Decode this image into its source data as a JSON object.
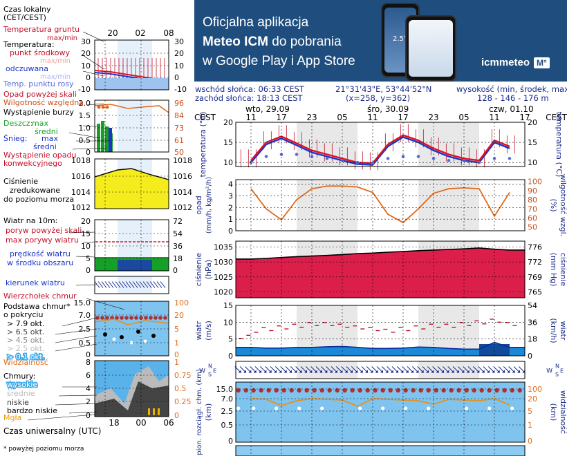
{
  "ad": {
    "line1": "Oficjalna aplikacja",
    "line2_bold": "Meteo ICM",
    "line2_rest": " do pobrania",
    "line3": "w Google Play i App Store",
    "logo": "icmmeteo",
    "logo_badge": "M°",
    "phone_temp": "2.5°"
  },
  "info": {
    "sunrise": "wschód słońca: 06:33 CEST",
    "sunset": "zachód słońca: 18:13 CEST",
    "coords": "21°31'43\"E, 53°44'52\"N",
    "grid": "(x=258, y=362)",
    "elev_label": "wysokość (min, środek, max)",
    "elev_values": "128 - 146 - 176 m"
  },
  "legend": {
    "local_time": [
      "Czas lokalny",
      "(CET/CEST)"
    ],
    "local_ticks": [
      "20",
      "02",
      "08"
    ],
    "soil_temp": [
      "Temperatura gruntu",
      "max/min"
    ],
    "temperature": "Temperatura:",
    "midpoint": "punkt środkowy",
    "max_min": "max/min",
    "feels_like": "odczuwana",
    "feels_max_min": "max/min",
    "dew_point": "Temp. punktu rosy",
    "precip_above": "Opad powyżej skali",
    "humidity": "Wilgotność względna",
    "storm": "Wystąpienie burzy",
    "rain": "Deszcz:",
    "max": "max",
    "mean": "średni",
    "snow": "Śnieg:",
    "convective": [
      "Wystąpienie opadu",
      "konwekcyjnego"
    ],
    "pressure": [
      "Ciśnienie",
      "zredukowane",
      "do poziomu morza"
    ],
    "wind_10m": "Wiatr na 10m:",
    "gust_above": "poryw powyżej skali",
    "max_gust": "max porywy wiatru",
    "wind_speed": [
      "prędkość wiatru",
      "w środku obszaru"
    ],
    "wind_dir": "kierunek wiatru",
    "cloud_top": "Wierzchołek chmur",
    "cloud_base": [
      "Podstawa chmur*",
      "o pokryciu"
    ],
    "okt": [
      "> 7.9 okt.",
      "> 6.5 okt.",
      "> 4.5 okt.",
      "> 2.5 okt.",
      "> 0.1 okt."
    ],
    "visibility": "Widzialność",
    "clouds": "Chmury:",
    "cloud_levels": [
      "wysokie",
      "średnie",
      "niskie",
      "bardzo niskie"
    ],
    "fog": "Mgła",
    "utc": "Czas uniwersalny (UTC)",
    "utc_ticks": [
      "18",
      "00",
      "06"
    ],
    "footnote": "* powyżej poziomu morza",
    "left_axes": {
      "temp": [
        "30",
        "20",
        "10",
        "0",
        "-10"
      ],
      "temp_r": [
        "30",
        "20",
        "10",
        "0",
        "-10"
      ],
      "precip": [
        "2.0",
        "1.5",
        "1.0",
        "0.5",
        "0"
      ],
      "hum": [
        "96",
        "84",
        "73",
        "61",
        "50"
      ],
      "press": [
        "1018",
        "1016",
        "1014",
        "1012"
      ],
      "wind": [
        "20",
        "15",
        "10",
        "5",
        "0"
      ],
      "wind_r": [
        "72",
        "54",
        "36",
        "18",
        "0"
      ],
      "cbase": [
        "15.0",
        "7.0",
        "2.5",
        "0.5",
        "0"
      ],
      "cbase_r": [
        "100",
        "20",
        "5",
        "1",
        "0"
      ],
      "cloud": [
        "8",
        "6",
        "4",
        "2",
        "0"
      ],
      "cloud_r": [
        "1",
        "0.75",
        "0.5",
        "0.25",
        "0"
      ]
    }
  },
  "chart_data": {
    "type": "line",
    "timezone": "CEST",
    "days": [
      "wto, 29.09",
      "śro, 30.09",
      "czw, 01.10"
    ],
    "hour_ticks": [
      "11",
      "17",
      "23",
      "05",
      "11",
      "17",
      "23",
      "05",
      "11",
      "17"
    ],
    "x_hours_from_11_29_09": [
      0,
      3,
      6,
      9,
      12,
      15,
      18,
      21,
      24,
      27,
      30,
      33,
      36,
      39,
      42,
      45,
      48,
      51
    ],
    "temperature": {
      "ylabel": "temperatura (°C)",
      "yticks": [
        20,
        15,
        10
      ],
      "ylim": [
        9,
        20
      ],
      "midpoint": [
        10.5,
        15,
        16.5,
        14.8,
        13,
        12,
        11,
        10,
        9.8,
        14.5,
        16.8,
        15.5,
        13.5,
        12,
        11,
        10.5,
        15.5,
        14
      ],
      "feels_like": [
        10,
        14.5,
        16,
        14.3,
        12.5,
        11.5,
        10.5,
        9.6,
        9.4,
        14,
        16.3,
        15,
        13,
        11.5,
        10.5,
        10,
        15,
        13.5
      ],
      "dew_point": [
        10,
        11.5,
        12,
        12,
        11.5,
        11,
        10.5,
        10,
        9.8,
        11,
        11.5,
        11.5,
        11,
        10.5,
        10.5,
        10,
        11,
        11
      ]
    },
    "precip_humidity": {
      "ylabel": "opad (mm/h, kg/m²/h)",
      "ylabel_r": "wilgotność wzgl. (%)",
      "yticks": [
        4,
        3,
        2,
        1,
        0
      ],
      "yticks_r": [
        100,
        90,
        80,
        70,
        60,
        50
      ],
      "humidity": [
        92,
        70,
        58,
        80,
        92,
        95,
        95,
        94,
        88,
        64,
        55,
        70,
        87,
        92,
        93,
        92,
        62,
        88
      ]
    },
    "pressure": {
      "ylabel": "ciśnienie (hPa)",
      "ylabel_r": "ciśnienie (mm Hg)",
      "yticks": [
        1035,
        1030,
        1025,
        1020
      ],
      "yticks_r": [
        776,
        772,
        769,
        765
      ],
      "ylim": [
        1018,
        1037
      ],
      "values": [
        1031,
        1031.2,
        1031.5,
        1031.8,
        1032,
        1032.2,
        1032.5,
        1032.8,
        1033,
        1033.3,
        1033.5,
        1033.8,
        1034,
        1034.2,
        1034.4,
        1034.7,
        1034.3,
        1034
      ]
    },
    "wind": {
      "ylabel": "wiatr (m/s)",
      "ylabel_r": "wiatr (km/h)",
      "yticks": [
        15,
        10,
        5,
        0
      ],
      "yticks_r": [
        54,
        36,
        18,
        0
      ],
      "ylim": [
        0,
        15
      ],
      "speed": [
        2.5,
        2.3,
        2.3,
        2.5,
        2.5,
        2.7,
        2.8,
        2.5,
        2.2,
        2.2,
        2.3,
        2.6,
        2.5,
        2.2,
        2.0,
        2.0,
        4.0,
        2.5
      ],
      "gusts": [
        7,
        7.5,
        8,
        8.5,
        9,
        9,
        8.5,
        8,
        7.5,
        7,
        7.5,
        8,
        8.5,
        8.5,
        9,
        9.5,
        10,
        9
      ]
    },
    "cloud_base": {
      "ylabel": "pion. rozciągł. chm. (km)",
      "ylabel_r": "widzialność (km)",
      "yticks": [
        "15.0",
        "7.0",
        "2.5",
        "0.5",
        "0"
      ],
      "yticks_r": [
        "100",
        "20",
        "5",
        "1",
        "0"
      ]
    }
  }
}
